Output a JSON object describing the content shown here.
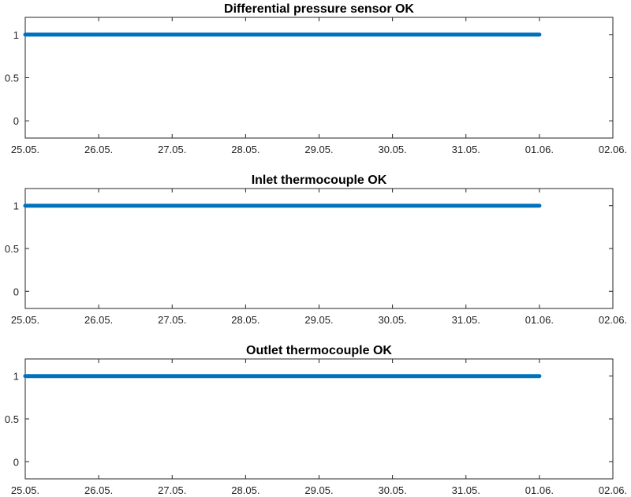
{
  "chart_data": [
    {
      "type": "line",
      "title": "Differential pressure sensor OK",
      "x_tick_labels": [
        "25.05.",
        "26.05.",
        "27.05.",
        "28.05.",
        "29.05.",
        "30.05.",
        "31.05.",
        "01.06.",
        "02.06."
      ],
      "y_tick_labels": [
        "0",
        "0.5",
        "1"
      ],
      "y_ticks": [
        0,
        0.5,
        1
      ],
      "xlim": [
        "25.05.",
        "02.06."
      ],
      "ylim": [
        -0.2,
        1.2
      ],
      "series": [
        {
          "color": "#0072BD",
          "x": [
            "25.05.",
            "01.06."
          ],
          "y": [
            1,
            1
          ]
        }
      ],
      "grid": false,
      "legend": "none"
    },
    {
      "type": "line",
      "title": "Inlet thermocouple OK",
      "x_tick_labels": [
        "25.05.",
        "26.05.",
        "27.05.",
        "28.05.",
        "29.05.",
        "30.05.",
        "31.05.",
        "01.06.",
        "02.06."
      ],
      "y_tick_labels": [
        "0",
        "0.5",
        "1"
      ],
      "y_ticks": [
        0,
        0.5,
        1
      ],
      "xlim": [
        "25.05.",
        "02.06."
      ],
      "ylim": [
        -0.2,
        1.2
      ],
      "series": [
        {
          "color": "#0072BD",
          "x": [
            "25.05.",
            "01.06."
          ],
          "y": [
            1,
            1
          ]
        }
      ],
      "grid": false,
      "legend": "none"
    },
    {
      "type": "line",
      "title": "Outlet thermocouple OK",
      "x_tick_labels": [
        "25.05.",
        "26.05.",
        "27.05.",
        "28.05.",
        "29.05.",
        "30.05.",
        "31.05.",
        "01.06.",
        "02.06."
      ],
      "y_tick_labels": [
        "0",
        "0.5",
        "1"
      ],
      "y_ticks": [
        0,
        0.5,
        1
      ],
      "xlim": [
        "25.05.",
        "02.06."
      ],
      "ylim": [
        -0.2,
        1.2
      ],
      "series": [
        {
          "color": "#0072BD",
          "x": [
            "25.05.",
            "01.06."
          ],
          "y": [
            1,
            1
          ]
        }
      ],
      "grid": false,
      "legend": "none"
    }
  ]
}
